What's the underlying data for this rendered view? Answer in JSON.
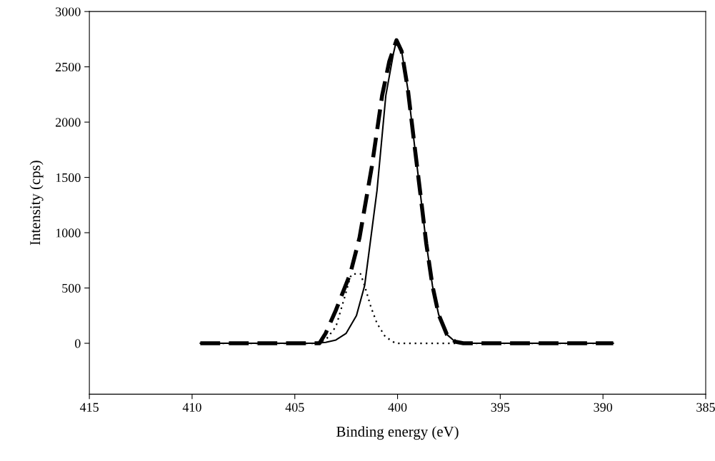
{
  "chart_data": {
    "type": "line",
    "xlabel": "Binding energy (eV)",
    "ylabel": "Intensity (cps)",
    "xlim": [
      415,
      385
    ],
    "xticks": [
      415,
      410,
      405,
      400,
      395,
      390,
      385
    ],
    "ylim": [
      -460,
      3000
    ],
    "yticks": [
      0,
      500,
      1000,
      1500,
      2000,
      2500,
      3000
    ],
    "grid": false,
    "legend": false,
    "marker": "none",
    "series": [
      {
        "color": "#000000",
        "line_style": "solid",
        "x": [
          409.6,
          405,
          404,
          403.5,
          403,
          402.5,
          402,
          401.6,
          401.0,
          400.57,
          400.2,
          400.05,
          399.8,
          399.5,
          399.2,
          398.9,
          398.6,
          398.3,
          398,
          397.6,
          397.2,
          396.8,
          389.5
        ],
        "values": [
          0,
          0,
          0,
          8,
          30,
          90,
          250,
          523,
          1380,
          2240,
          2620,
          2740,
          2640,
          2300,
          1830,
          1370,
          900,
          520,
          260,
          80,
          15,
          0,
          0
        ]
      },
      {
        "color": "#000000",
        "line_style": "dotted",
        "x": [
          409.6,
          404,
          403.5,
          403,
          402.6,
          402.3,
          402.2,
          401.8,
          401.6,
          401.3,
          401,
          400.6,
          400.1,
          397.2,
          389.5
        ],
        "values": [
          0,
          0,
          30,
          150,
          400,
          600,
          627,
          627,
          520,
          330,
          180,
          60,
          0,
          0,
          0
        ]
      },
      {
        "color": "#000000",
        "line_style": "dashed",
        "x": [
          409.6,
          404,
          403.8,
          403.5,
          403,
          402.3,
          401.85,
          401.25,
          400.75,
          400.4,
          400.05,
          399.8,
          399.5,
          399.2,
          398.9,
          398.6,
          398.3,
          398,
          397.6,
          397.2,
          396.8,
          389.5
        ],
        "values": [
          0,
          0,
          0,
          90,
          300,
          630,
          955,
          1600,
          2240,
          2550,
          2740,
          2640,
          2300,
          1830,
          1370,
          900,
          520,
          260,
          80,
          15,
          0,
          0
        ]
      }
    ]
  }
}
